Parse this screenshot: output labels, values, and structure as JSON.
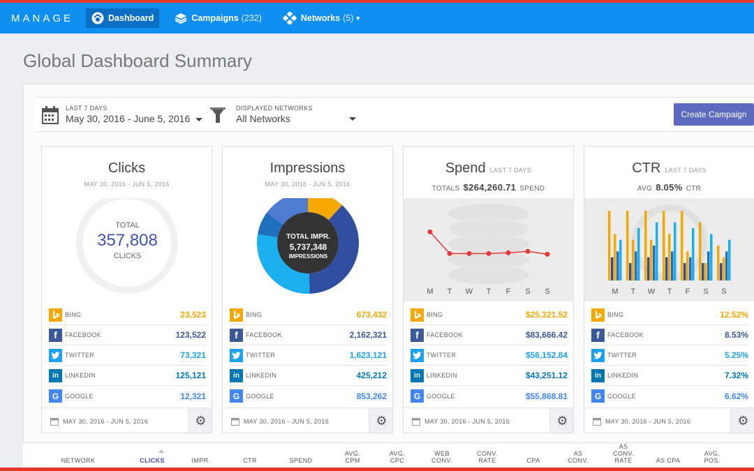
{
  "nav": {
    "brand": "MANAGE",
    "items": [
      {
        "label": "Dashboard",
        "count": ""
      },
      {
        "label": "Campaigns",
        "count": "(232)"
      },
      {
        "label": "Networks",
        "count": "(5)"
      }
    ]
  },
  "page": {
    "title": "Global Dashboard Summary"
  },
  "filters": {
    "date_label": "LAST 7 DAYS",
    "date_value": "May 30, 2016 - June 5, 2016",
    "net_label": "DISPLAYED NETWORKS",
    "net_value": "All Networks",
    "create_label": "Create Campaign"
  },
  "colors": {
    "bing": "#f5a800",
    "facebook": "#3b5998",
    "twitter": "#1da1f2",
    "linkedin": "#0077b5",
    "google": "#4285f4"
  },
  "networks": [
    "BING",
    "FACEBOOK",
    "TWITTER",
    "LINKEDIN",
    "GOOGLE"
  ],
  "cards": [
    {
      "title": "Clicks",
      "subtitle": "",
      "date": "MAY 30, 2016 - JUN 5, 2016",
      "total_label": "TOTAL",
      "total_value": "357,808",
      "total_unit": "CLICKS",
      "values": [
        "23,523",
        "123,522",
        "73,321",
        "125,121",
        "12,321"
      ],
      "footer_date": "MAY 30, 2016 - JUN 5, 2016"
    },
    {
      "title": "Impressions",
      "subtitle": "",
      "date": "MAY 30, 2016 - JUN 5, 2016",
      "donut_label": "TOTAL IMPR.",
      "donut_value": "5,737,348",
      "donut_unit": "IMPRESSIONS",
      "values": [
        "673,432",
        "2,162,321",
        "1,623,121",
        "425,212",
        "853,262"
      ],
      "footer_date": "MAY 30, 2016 - JUN 5, 2016"
    },
    {
      "title": "Spend",
      "subtitle": "LAST 7 DAYS",
      "totals_prefix": "TOTALS",
      "totals_value": "$264,260.71",
      "totals_suffix": "SPEND",
      "values": [
        "$25,321.52",
        "$83,666.42",
        "$56,152.84",
        "$43,251.12",
        "$55,868.81"
      ],
      "footer_date": "MAY 30, 2016 - JUN 5, 2016"
    },
    {
      "title": "CTR",
      "subtitle": "LAST 7 DAYS",
      "totals_prefix": "AVG",
      "totals_value": "8.05%",
      "totals_suffix": "CTR",
      "values": [
        "12.52%",
        "8.53%",
        "5.25%",
        "7.32%",
        "6.62%"
      ],
      "footer_date": "MAY 30, 2016 - JUN 5, 2016"
    }
  ],
  "days": [
    "M",
    "T",
    "W",
    "T",
    "F",
    "S",
    "S"
  ],
  "chart_data": [
    {
      "type": "pie",
      "title": "Impressions",
      "categories": [
        "Bing",
        "Facebook",
        "Twitter",
        "LinkedIn",
        "Google"
      ],
      "values": [
        673432,
        2162321,
        1623121,
        425212,
        853262
      ]
    },
    {
      "type": "line",
      "title": "Spend",
      "categories": [
        "M",
        "T",
        "W",
        "T",
        "F",
        "S",
        "S"
      ],
      "values": [
        9.0,
        6.0,
        6.0,
        6.0,
        6.1,
        6.3,
        5.9
      ]
    },
    {
      "type": "bar",
      "title": "CTR",
      "categories": [
        "M",
        "T",
        "W",
        "T",
        "F",
        "S",
        "S"
      ],
      "series": [
        {
          "values": [
            12,
            12,
            12,
            12,
            12,
            10,
            6
          ]
        },
        {
          "values": [
            4,
            3,
            4,
            4,
            3,
            3,
            3
          ]
        },
        {
          "values": [
            8,
            7,
            7,
            8,
            5,
            3,
            4
          ]
        },
        {
          "values": [
            5,
            5,
            6,
            5,
            4,
            5,
            5
          ]
        },
        {
          "values": [
            7,
            9,
            10,
            10,
            9,
            8,
            7
          ]
        }
      ]
    }
  ],
  "table": {
    "headers": [
      "NETWORK",
      "CLICKS",
      "IMPR.",
      "CTR",
      "SPEND",
      "AVG.\nCPM",
      "AVG.\nCPC",
      "WEB\nCONV.",
      "CONV.\nRATE",
      "CPA",
      "AS\nCONV.",
      "AS\nCONV.\nRATE",
      "AS CPA",
      "AVG.\nPOS."
    ]
  }
}
